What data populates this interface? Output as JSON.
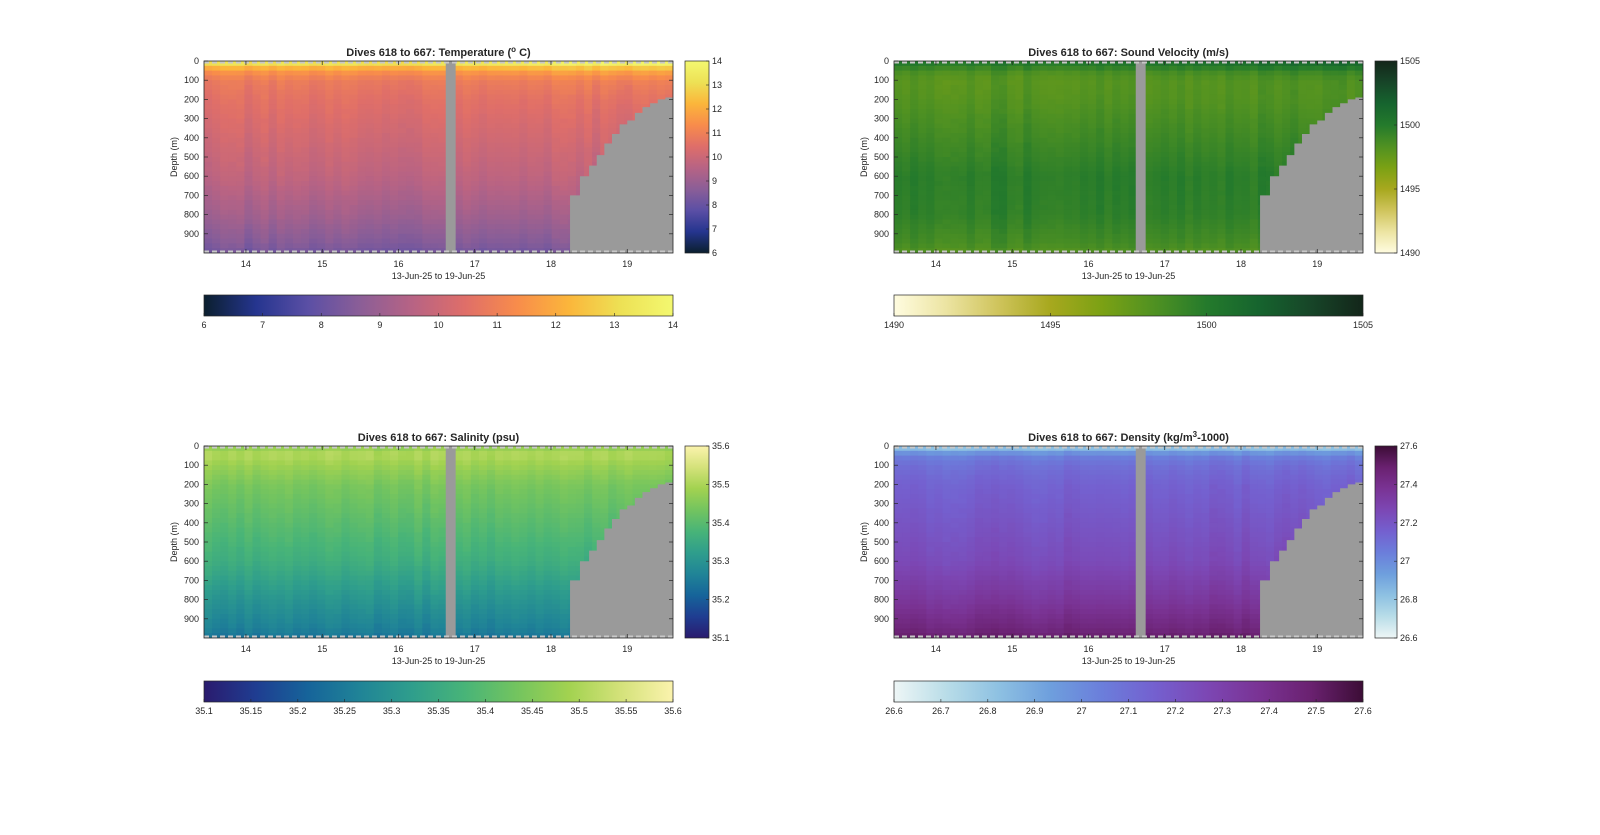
{
  "chart_data": [
    {
      "type": "heatmap",
      "title": "Dives 618 to 667: Temperature (° C)",
      "title_pre": "Dives 618 to 667: Temperature (",
      "title_sup": "o",
      "title_post": " C)",
      "xlabel": "13-Jun-25 to 19-Jun-25",
      "ylabel": "Depth (m)",
      "x_ticks": [
        "14",
        "15",
        "16",
        "17",
        "18",
        "19"
      ],
      "x_tick_values": [
        14,
        15,
        16,
        17,
        18,
        19
      ],
      "xlim": [
        13.45,
        19.6
      ],
      "y_ticks": [
        "0",
        "100",
        "200",
        "300",
        "400",
        "500",
        "600",
        "700",
        "800",
        "900"
      ],
      "y_tick_values": [
        0,
        100,
        200,
        300,
        400,
        500,
        600,
        700,
        800,
        900
      ],
      "ylim": [
        0,
        1000
      ],
      "y_reversed": true,
      "gap": [
        16.62,
        16.75
      ],
      "seafloor": {
        "x": [
          18.25,
          18.38,
          18.5,
          18.6,
          18.7,
          18.8,
          18.9,
          19.0,
          19.1,
          19.2,
          19.3,
          19.4,
          19.5,
          19.6
        ],
        "depth": [
          700,
          600,
          545,
          490,
          430,
          380,
          330,
          310,
          270,
          240,
          220,
          200,
          190,
          185
        ]
      },
      "profile": {
        "depth": [
          0,
          10,
          30,
          60,
          100,
          200,
          400,
          600,
          800,
          950,
          1000
        ],
        "value": [
          13.5,
          13.2,
          12.3,
          11.4,
          10.8,
          10.5,
          10.1,
          9.7,
          9.1,
          8.5,
          8.2
        ]
      },
      "surface_warming_east": 0.7,
      "colormap": [
        "#0b1f2e",
        "#25358f",
        "#5b4fa5",
        "#8b5e97",
        "#b76384",
        "#df6e69",
        "#f88c4b",
        "#fbb63b",
        "#ede155",
        "#f3f870"
      ],
      "colorbar_ticks": [
        "6",
        "7",
        "8",
        "9",
        "10",
        "11",
        "12",
        "13",
        "14"
      ],
      "colorbar_tick_values": [
        6,
        7,
        8,
        9,
        10,
        11,
        12,
        13,
        14
      ],
      "clim": [
        6,
        14
      ],
      "horizontal_colorbar_ticks": [
        "6",
        "7",
        "8",
        "9",
        "10",
        "11",
        "12",
        "13",
        "14"
      ],
      "horizontal_colorbar_tick_values": [
        6,
        7,
        8,
        9,
        10,
        11,
        12,
        13,
        14
      ]
    },
    {
      "type": "heatmap",
      "title": "Dives 618 to 667: Sound Velocity (m/s)",
      "title_pre": "Dives 618 to 667: Sound Velocity (m/s)",
      "title_sup": "",
      "title_post": "",
      "xlabel": "13-Jun-25 to 19-Jun-25",
      "ylabel": "Depth (m)",
      "x_ticks": [
        "14",
        "15",
        "16",
        "17",
        "18",
        "19"
      ],
      "x_tick_values": [
        14,
        15,
        16,
        17,
        18,
        19
      ],
      "xlim": [
        13.45,
        19.6
      ],
      "y_ticks": [
        "0",
        "100",
        "200",
        "300",
        "400",
        "500",
        "600",
        "700",
        "800",
        "900"
      ],
      "y_tick_values": [
        0,
        100,
        200,
        300,
        400,
        500,
        600,
        700,
        800,
        900
      ],
      "ylim": [
        0,
        1000
      ],
      "y_reversed": true,
      "gap": [
        16.62,
        16.75
      ],
      "seafloor": {
        "x": [
          18.25,
          18.38,
          18.5,
          18.6,
          18.7,
          18.8,
          18.9,
          19.0,
          19.1,
          19.2,
          19.3,
          19.4,
          19.5,
          19.6
        ],
        "depth": [
          700,
          600,
          545,
          490,
          430,
          380,
          330,
          310,
          270,
          240,
          220,
          200,
          190,
          185
        ]
      },
      "profile": {
        "depth": [
          0,
          10,
          30,
          60,
          100,
          200,
          400,
          600,
          800,
          950,
          1000
        ],
        "value": [
          1500.5,
          1500.2,
          1499.5,
          1498.5,
          1498.0,
          1498.2,
          1499.0,
          1499.8,
          1499.6,
          1498.8,
          1498.2
        ]
      },
      "surface_warming_east": 0.6,
      "colormap": [
        "#fffce0",
        "#ece4a2",
        "#cfc45c",
        "#a7a81e",
        "#7ba114",
        "#4f9122",
        "#247a2c",
        "#16642e",
        "#174528",
        "#13261a"
      ],
      "colorbar_ticks": [
        "1490",
        "1495",
        "1500",
        "1505"
      ],
      "colorbar_tick_values": [
        1490,
        1495,
        1500,
        1505
      ],
      "clim": [
        1490,
        1505
      ],
      "horizontal_colorbar_ticks": [
        "1490",
        "1495",
        "1500",
        "1505"
      ],
      "horizontal_colorbar_tick_values": [
        1490,
        1495,
        1500,
        1505
      ]
    },
    {
      "type": "heatmap",
      "title": "Dives 618 to 667: Salinity (psu)",
      "title_pre": "Dives 618 to 667: Salinity (psu)",
      "title_sup": "",
      "title_post": "",
      "xlabel": "13-Jun-25 to 19-Jun-25",
      "ylabel": "Depth (m)",
      "x_ticks": [
        "14",
        "15",
        "16",
        "17",
        "18",
        "19"
      ],
      "x_tick_values": [
        14,
        15,
        16,
        17,
        18,
        19
      ],
      "xlim": [
        13.45,
        19.6
      ],
      "y_ticks": [
        "0",
        "100",
        "200",
        "300",
        "400",
        "500",
        "600",
        "700",
        "800",
        "900"
      ],
      "y_tick_values": [
        0,
        100,
        200,
        300,
        400,
        500,
        600,
        700,
        800,
        900
      ],
      "ylim": [
        0,
        1000
      ],
      "y_reversed": true,
      "gap": [
        16.62,
        16.75
      ],
      "seafloor": {
        "x": [
          18.25,
          18.38,
          18.5,
          18.6,
          18.7,
          18.8,
          18.9,
          19.0,
          19.1,
          19.2,
          19.3,
          19.4,
          19.5,
          19.6
        ],
        "depth": [
          700,
          600,
          545,
          490,
          430,
          380,
          330,
          310,
          270,
          240,
          220,
          200,
          190,
          185
        ]
      },
      "profile": {
        "depth": [
          0,
          10,
          30,
          60,
          100,
          200,
          400,
          600,
          800,
          950,
          1000
        ],
        "value": [
          35.45,
          35.47,
          35.5,
          35.5,
          35.48,
          35.44,
          35.4,
          35.36,
          35.3,
          35.26,
          35.24
        ]
      },
      "surface_warming_east": 0.0,
      "colormap": [
        "#2a1b6e",
        "#1f3d91",
        "#16649a",
        "#208497",
        "#2f9e8c",
        "#48b478",
        "#73c45f",
        "#a2d250",
        "#d4e27a",
        "#fbf3ad"
      ],
      "colorbar_ticks": [
        "35.1",
        "35.2",
        "35.3",
        "35.4",
        "35.5",
        "35.6"
      ],
      "colorbar_tick_values": [
        35.1,
        35.2,
        35.3,
        35.4,
        35.5,
        35.6
      ],
      "clim": [
        35.1,
        35.6
      ],
      "horizontal_colorbar_ticks": [
        "35.1",
        "35.15",
        "35.2",
        "35.25",
        "35.3",
        "35.35",
        "35.4",
        "35.45",
        "35.5",
        "35.55",
        "35.6"
      ],
      "horizontal_colorbar_tick_values": [
        35.1,
        35.15,
        35.2,
        35.25,
        35.3,
        35.35,
        35.4,
        35.45,
        35.5,
        35.55,
        35.6
      ]
    },
    {
      "type": "heatmap",
      "title": "Dives 618 to 667: Density (kg/m³-1000)",
      "title_pre": "Dives 618 to 667: Density (kg/m",
      "title_sup": "3",
      "title_post": "-1000)",
      "xlabel": "13-Jun-25 to 19-Jun-25",
      "ylabel": "Depth (m)",
      "x_ticks": [
        "14",
        "15",
        "16",
        "17",
        "18",
        "19"
      ],
      "x_tick_values": [
        14,
        15,
        16,
        17,
        18,
        19
      ],
      "xlim": [
        13.45,
        19.6
      ],
      "y_ticks": [
        "0",
        "100",
        "200",
        "300",
        "400",
        "500",
        "600",
        "700",
        "800",
        "900"
      ],
      "y_tick_values": [
        0,
        100,
        200,
        300,
        400,
        500,
        600,
        700,
        800,
        900
      ],
      "ylim": [
        0,
        1000
      ],
      "y_reversed": true,
      "gap": [
        16.62,
        16.75
      ],
      "seafloor": {
        "x": [
          18.25,
          18.38,
          18.5,
          18.6,
          18.7,
          18.8,
          18.9,
          19.0,
          19.1,
          19.2,
          19.3,
          19.4,
          19.5,
          19.6
        ],
        "depth": [
          700,
          600,
          545,
          490,
          430,
          380,
          330,
          310,
          270,
          240,
          220,
          200,
          190,
          185
        ]
      },
      "profile": {
        "depth": [
          0,
          10,
          30,
          60,
          100,
          200,
          400,
          600,
          800,
          950,
          1000
        ],
        "value": [
          26.75,
          26.82,
          26.95,
          27.05,
          27.1,
          27.15,
          27.2,
          27.25,
          27.35,
          27.45,
          27.5
        ]
      },
      "surface_warming_east": -0.1,
      "colormap": [
        "#eef6f6",
        "#b9dde8",
        "#8ec1e2",
        "#6e9fdd",
        "#6b7edb",
        "#7460cf",
        "#7c47b4",
        "#7a3394",
        "#6a2170",
        "#3c0d36"
      ],
      "colorbar_ticks": [
        "26.6",
        "26.8",
        "27",
        "27.2",
        "27.4",
        "27.6"
      ],
      "colorbar_tick_values": [
        26.6,
        26.8,
        27,
        27.2,
        27.4,
        27.6
      ],
      "clim": [
        26.6,
        27.6
      ],
      "horizontal_colorbar_ticks": [
        "26.6",
        "26.7",
        "26.8",
        "26.9",
        "27",
        "27.1",
        "27.2",
        "27.3",
        "27.4",
        "27.5",
        "27.6"
      ],
      "horizontal_colorbar_tick_values": [
        26.6,
        26.7,
        26.8,
        26.9,
        27,
        27.1,
        27.2,
        27.3,
        27.4,
        27.5,
        27.6
      ]
    }
  ]
}
